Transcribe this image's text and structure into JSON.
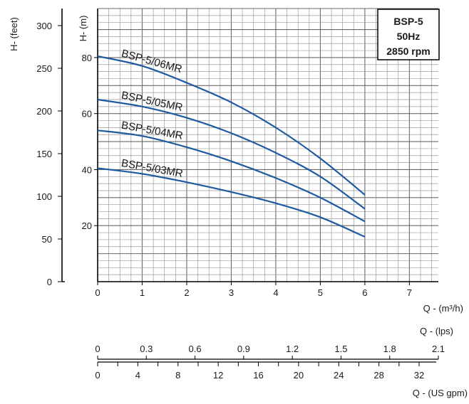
{
  "chart_data": {
    "type": "line",
    "info_box": [
      "BSP-5",
      "50Hz",
      "2850 rpm"
    ],
    "x_axis": {
      "label": "Q - (m³/h)",
      "ticks": [
        "0",
        "1",
        "2",
        "3",
        "4",
        "5",
        "6",
        "7"
      ],
      "range": [
        0,
        7.65
      ]
    },
    "y_axis_m": {
      "label": "H- (m)",
      "ticks": [
        "20",
        "40",
        "60",
        "80"
      ],
      "range": [
        0,
        97.5
      ]
    },
    "y_axis_feet": {
      "label": "H- (feet)",
      "ticks": [
        "0",
        "50",
        "100",
        "150",
        "200",
        "250",
        "300"
      ],
      "range": [
        0,
        320
      ]
    },
    "lps_axis": {
      "label": "Q - (lps)",
      "ticks": [
        "0",
        "0.3",
        "0.6",
        "0.9",
        "1.2",
        "1.5",
        "1.8",
        "2.1"
      ],
      "range": [
        0,
        2.1
      ]
    },
    "gpm_axis": {
      "label": "Q - (US gpm)",
      "ticks": [
        "0",
        "4",
        "8",
        "12",
        "16",
        "20",
        "24",
        "28",
        "32"
      ],
      "range": [
        0,
        33.7
      ]
    },
    "series": [
      {
        "name": "BSP-5/06MR",
        "x": [
          0,
          1,
          2,
          3,
          4,
          5,
          6
        ],
        "y": [
          80.5,
          77,
          71,
          64,
          55,
          44,
          31
        ]
      },
      {
        "name": "BSP-5/05MR",
        "x": [
          0,
          1,
          2,
          3,
          4,
          5,
          6
        ],
        "y": [
          65,
          62.5,
          58.5,
          53,
          46,
          37.5,
          26
        ]
      },
      {
        "name": "BSP-5/04MR",
        "x": [
          0,
          1,
          2,
          3,
          4,
          5,
          6
        ],
        "y": [
          54,
          52,
          48,
          43,
          37,
          30,
          21.5
        ]
      },
      {
        "name": "BSP-5/03MR",
        "x": [
          0,
          1,
          2,
          3,
          4,
          5,
          6
        ],
        "y": [
          40.5,
          38.5,
          35.5,
          32,
          28,
          23,
          16
        ]
      }
    ],
    "grid": true,
    "line_color": "#1e5aa0"
  }
}
